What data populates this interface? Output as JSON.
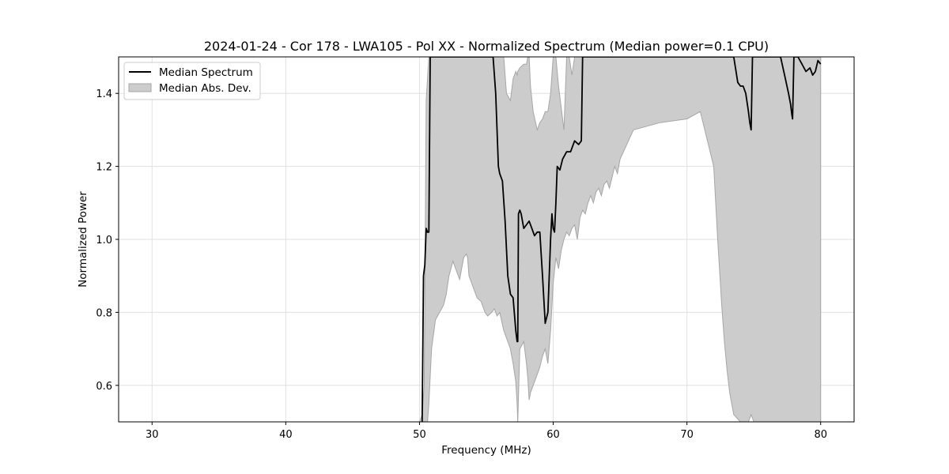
{
  "chart_data": {
    "type": "line",
    "title": "2024-01-24 - Cor 178 - LWA105 - Pol XX - Normalized Spectrum (Median power=0.1 CPU)",
    "xlabel": "Frequency (MHz)",
    "ylabel": "Normalized Power",
    "xlim": [
      27.5,
      82.5
    ],
    "ylim": [
      0.5,
      1.5
    ],
    "xticks": [
      30,
      40,
      50,
      60,
      70,
      80
    ],
    "yticks": [
      0.6,
      0.8,
      1.0,
      1.2,
      1.4
    ],
    "xtick_labels": [
      "30",
      "40",
      "50",
      "60",
      "70",
      "80"
    ],
    "ytick_labels": [
      "0.6",
      "0.8",
      "1.0",
      "1.2",
      "1.4"
    ],
    "grid": true,
    "legend_position": "top-left",
    "colors": {
      "median": "#000000",
      "band_fill": "#cccccc",
      "band_edge": "#a6a6a6",
      "grid": "#e0e0e0"
    },
    "series": [
      {
        "name": "Median Spectrum",
        "style": "line",
        "x": [
          50.2,
          50.3,
          50.4,
          50.5,
          50.6,
          50.7,
          50.8,
          50.85,
          50.9,
          51.0,
          51.5,
          52.0,
          53.0,
          54.0,
          55.0,
          55.5,
          55.7,
          55.8,
          55.9,
          56.0,
          56.2,
          56.4,
          56.6,
          56.8,
          57.0,
          57.2,
          57.3,
          57.35,
          57.4,
          57.5,
          57.6,
          57.8,
          58.0,
          58.2,
          58.4,
          58.6,
          58.8,
          59.0,
          59.2,
          59.4,
          59.6,
          59.8,
          59.9,
          60.0,
          60.1,
          60.2,
          60.3,
          60.5,
          60.7,
          61.0,
          61.3,
          61.6,
          61.9,
          62.1,
          62.2,
          62.3,
          63.0,
          64.0,
          65.0,
          66.0,
          67.0,
          68.0,
          69.0,
          70.0,
          71.0,
          72.0,
          73.0,
          73.5,
          73.8,
          74.0,
          74.2,
          74.4,
          74.6,
          74.7,
          74.8,
          74.9,
          75.0,
          75.5,
          76.0,
          76.5,
          77.0,
          77.3,
          77.6,
          77.75,
          77.85,
          77.9,
          78.0,
          78.3,
          78.6,
          78.9,
          79.2,
          79.4,
          79.6,
          79.8,
          80.0
        ],
        "y": [
          0.5,
          0.9,
          0.93,
          1.03,
          1.02,
          1.02,
          1.5,
          1.5,
          1.5,
          1.5,
          1.5,
          1.5,
          1.5,
          1.5,
          1.5,
          1.5,
          1.4,
          1.3,
          1.2,
          1.18,
          1.16,
          1.05,
          0.9,
          0.85,
          0.84,
          0.75,
          0.72,
          0.72,
          1.07,
          1.08,
          1.07,
          1.03,
          1.04,
          1.05,
          1.03,
          1.01,
          1.02,
          1.02,
          0.9,
          0.77,
          0.8,
          1.0,
          1.07,
          1.03,
          1.02,
          1.1,
          1.2,
          1.19,
          1.22,
          1.24,
          1.24,
          1.27,
          1.26,
          1.27,
          1.5,
          1.5,
          1.5,
          1.5,
          1.5,
          1.5,
          1.5,
          1.5,
          1.5,
          1.5,
          1.5,
          1.5,
          1.5,
          1.5,
          1.43,
          1.42,
          1.42,
          1.4,
          1.35,
          1.32,
          1.3,
          1.5,
          1.5,
          1.5,
          1.5,
          1.5,
          1.5,
          1.45,
          1.4,
          1.37,
          1.34,
          1.33,
          1.5,
          1.5,
          1.48,
          1.46,
          1.47,
          1.45,
          1.46,
          1.49,
          1.48
        ]
      },
      {
        "name": "Median Abs. Dev.",
        "style": "band",
        "x": [
          50.0,
          50.2,
          50.35,
          50.5,
          50.7,
          50.9,
          51.2,
          51.5,
          51.8,
          52.0,
          52.2,
          52.5,
          52.8,
          53.0,
          53.3,
          53.5,
          53.6,
          53.7,
          53.9,
          54.1,
          54.3,
          54.6,
          54.9,
          55.1,
          55.4,
          55.6,
          55.8,
          56.0,
          56.3,
          56.5,
          56.8,
          57.0,
          57.2,
          57.3,
          57.35,
          57.5,
          57.8,
          58.0,
          58.1,
          58.2,
          58.3,
          58.5,
          58.8,
          59.0,
          59.2,
          59.4,
          59.6,
          59.8,
          60.0,
          60.2,
          60.4,
          60.6,
          60.8,
          61.0,
          61.2,
          61.4,
          61.6,
          61.8,
          62.0,
          62.2,
          62.4,
          62.6,
          62.8,
          63.0,
          63.2,
          63.4,
          63.6,
          63.8,
          64.0,
          64.2,
          64.4,
          64.6,
          64.8,
          65.0,
          66.0,
          68.0,
          70.0,
          71.0,
          72.0,
          72.3,
          72.6,
          72.8,
          73.0,
          73.2,
          73.5,
          74.0,
          74.3,
          74.6,
          74.8,
          75.0,
          75.3,
          76.0,
          77.0,
          78.0,
          79.0,
          79.5,
          80.0
        ],
        "lower": [
          0.5,
          0.5,
          0.45,
          0.45,
          0.55,
          0.7,
          0.78,
          0.8,
          0.82,
          0.85,
          0.9,
          0.94,
          0.91,
          0.89,
          0.95,
          0.96,
          0.95,
          0.9,
          0.88,
          0.86,
          0.84,
          0.83,
          0.8,
          0.79,
          0.8,
          0.81,
          0.79,
          0.8,
          0.75,
          0.73,
          0.7,
          0.66,
          0.61,
          0.55,
          0.5,
          0.7,
          0.72,
          0.66,
          0.62,
          0.56,
          0.58,
          0.6,
          0.63,
          0.65,
          0.68,
          0.7,
          0.66,
          0.75,
          0.88,
          0.95,
          0.92,
          0.97,
          1.0,
          1.02,
          1.01,
          1.03,
          1.04,
          1.0,
          1.06,
          1.08,
          1.07,
          1.1,
          1.12,
          1.1,
          1.13,
          1.14,
          1.12,
          1.15,
          1.16,
          1.14,
          1.17,
          1.2,
          1.18,
          1.22,
          1.3,
          1.32,
          1.33,
          1.35,
          1.2,
          1.0,
          0.82,
          0.72,
          0.64,
          0.58,
          0.52,
          0.5,
          0.5,
          0.5,
          0.52,
          0.5,
          0.5,
          0.5,
          0.5,
          0.5,
          0.5,
          0.5,
          0.5
        ],
        "upper": [
          0.5,
          0.52,
          0.6,
          1.38,
          1.5,
          1.5,
          1.5,
          1.5,
          1.5,
          1.5,
          1.5,
          1.5,
          1.5,
          1.5,
          1.5,
          1.5,
          1.5,
          1.5,
          1.5,
          1.5,
          1.5,
          1.5,
          1.5,
          1.5,
          1.5,
          1.5,
          1.5,
          1.5,
          1.5,
          1.4,
          1.38,
          1.44,
          1.46,
          1.45,
          1.46,
          1.47,
          1.48,
          1.48,
          1.5,
          1.5,
          1.42,
          1.35,
          1.3,
          1.32,
          1.33,
          1.35,
          1.35,
          1.4,
          1.5,
          1.5,
          1.42,
          1.36,
          1.3,
          1.5,
          1.5,
          1.45,
          1.5,
          1.5,
          1.5,
          1.5,
          1.5,
          1.5,
          1.5,
          1.5,
          1.5,
          1.5,
          1.5,
          1.5,
          1.5,
          1.5,
          1.5,
          1.5,
          1.5,
          1.5,
          1.5,
          1.5,
          1.5,
          1.5,
          1.5,
          1.5,
          1.5,
          1.5,
          1.5,
          1.5,
          1.5,
          1.5,
          1.5,
          1.5,
          1.5,
          1.5,
          1.5,
          1.5,
          1.5,
          1.5,
          1.5,
          1.5,
          1.5
        ]
      }
    ]
  }
}
